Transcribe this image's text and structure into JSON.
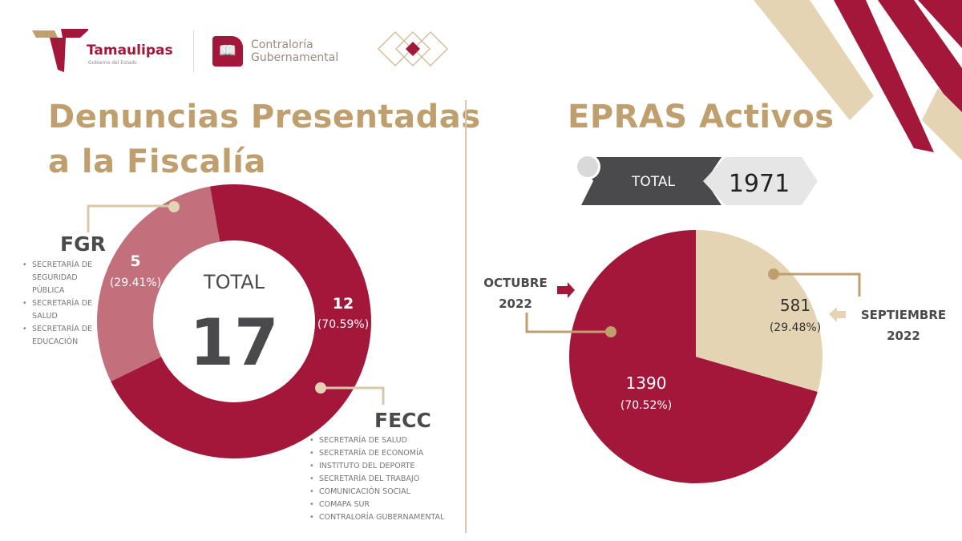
{
  "header": {
    "logo1_name": "Tamaulipas",
    "logo1_sub": "Gobierno del Estado",
    "logo2_line1": "Contraloría",
    "logo2_line2": "Gubernamental"
  },
  "colors": {
    "red": "#a3173a",
    "rose": "#c2707c",
    "gold": "#bf9f6e",
    "beige": "#e4d4b3",
    "grey": "#4a4a4c"
  },
  "left": {
    "title_line1": "Denuncias Presentadas",
    "title_line2": "a la Fiscalía",
    "total_label": "TOTAL",
    "total_value": "17",
    "fgr": {
      "label": "FGR",
      "value": "5",
      "pct": "(29.41%)",
      "items": [
        "SECRETARÍA DE SEGURIDAD PÚBLICA",
        "SECRETARÍA DE SALUD",
        "SECRETARÍA DE EDUCACIÓN"
      ]
    },
    "fecc": {
      "label": "FECC",
      "value": "12",
      "pct": "(70.59%)",
      "items": [
        "SECRETARÍA DE SALUD",
        "SECRETARÍA DE ECONOMÍA",
        "INSTITUTO DEL DEPORTE",
        "SECRETARÍA DEL TRABAJO",
        "COMUNICACIÓN SOCIAL",
        "COMAPA SUR",
        "CONTRALORÍA GUBERNAMENTAL"
      ]
    }
  },
  "right": {
    "title": "EPRAS Activos",
    "total_label": "TOTAL",
    "total_value": "1971",
    "oct": {
      "label1": "OCTUBRE",
      "label2": "2022",
      "value": "1390",
      "pct": "(70.52%)"
    },
    "sep": {
      "label1": "SEPTIEMBRE",
      "label2": "2022",
      "value": "581",
      "pct": "(29.48%)"
    }
  },
  "chart_data": [
    {
      "type": "pie",
      "variant": "donut",
      "title": "Denuncias Presentadas a la Fiscalía",
      "categories": [
        "FGR",
        "FECC"
      ],
      "values": [
        5,
        12
      ],
      "percentages": [
        29.41,
        70.59
      ],
      "total": 17
    },
    {
      "type": "pie",
      "title": "EPRAS Activos",
      "categories": [
        "SEPTIEMBRE 2022",
        "OCTUBRE 2022"
      ],
      "values": [
        581,
        1390
      ],
      "percentages": [
        29.48,
        70.52
      ],
      "total": 1971
    }
  ]
}
